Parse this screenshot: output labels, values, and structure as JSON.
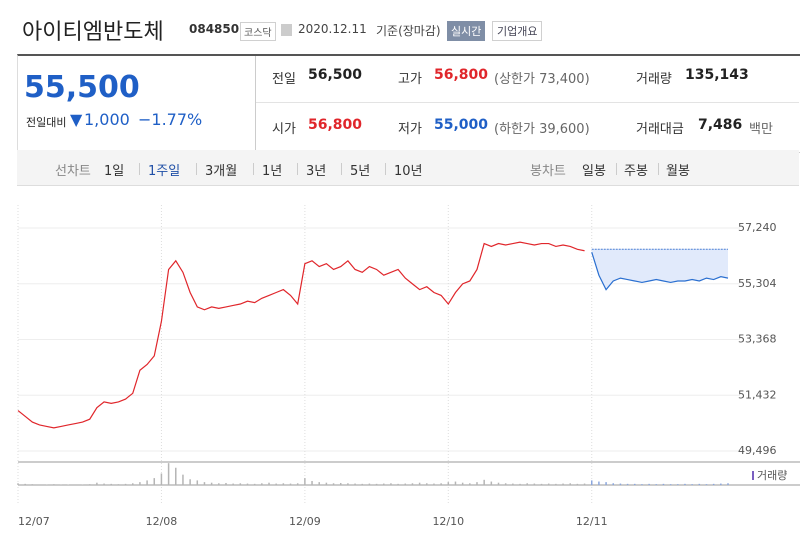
{
  "header": {
    "title": "아이티엠반도체",
    "code": "084850",
    "market": "코스닥",
    "date": "2020.12.11",
    "date_note": "기준(장마감)",
    "realtime_button": "실시간",
    "company_button": "기업개요"
  },
  "summary": {
    "price": "55,500",
    "change_label": "전일대비",
    "change": "1,000",
    "change_pct": "−1.77%"
  },
  "stats": [
    {
      "label": "전일",
      "value": "56,500",
      "note": null
    },
    {
      "label": "고가",
      "value": "56,800",
      "note": "(상한가 73,400)"
    },
    {
      "label": "거래량",
      "value": "135,143",
      "note": null
    },
    {
      "label": "시가",
      "value": "56,800",
      "note": null
    },
    {
      "label": "저가",
      "value": "55,000",
      "note": "(하한가 39,600)"
    },
    {
      "label": "거래대금",
      "value": "7,486",
      "note": "백만"
    }
  ],
  "tabs": {
    "line_label": "선차트",
    "line_tabs": [
      "1일",
      "1주일",
      "3개월",
      "1년",
      "3년",
      "5년",
      "10년"
    ],
    "active": "1주일",
    "candle_label": "봉차트",
    "candle_tabs": [
      "일봉",
      "주봉",
      "월봉"
    ]
  },
  "chart_data": [
    {
      "type": "line",
      "baseline": 56500,
      "categories": [
        "12/07",
        null,
        null,
        null,
        null,
        null,
        null,
        null,
        null,
        null,
        null,
        null,
        null,
        null,
        null,
        null,
        null,
        null,
        null,
        null,
        "12/08",
        null,
        null,
        null,
        null,
        null,
        null,
        null,
        null,
        null,
        null,
        null,
        null,
        null,
        null,
        null,
        null,
        null,
        null,
        null,
        "12/09",
        null,
        null,
        null,
        null,
        null,
        null,
        null,
        null,
        null,
        null,
        null,
        null,
        null,
        null,
        null,
        null,
        null,
        null,
        null,
        "12/10",
        null,
        null,
        null,
        null,
        null,
        null,
        null,
        null,
        null,
        null,
        null,
        null,
        null,
        null,
        null,
        null,
        null,
        null,
        null,
        "12/11",
        null,
        null,
        null,
        null,
        null,
        null,
        null,
        null,
        null,
        null,
        null,
        null,
        null,
        null,
        null,
        null,
        null,
        null,
        null
      ],
      "series": [
        {
          "name": "past",
          "color": "#e0262b",
          "values": [
            50900,
            50700,
            50500,
            50400,
            50350,
            50300,
            50350,
            50400,
            50450,
            50500,
            50600,
            51000,
            51200,
            51150,
            51200,
            51300,
            51500,
            52300,
            52500,
            52800,
            54000,
            55800,
            56100,
            55700,
            55000,
            54500,
            54400,
            54500,
            54450,
            54500,
            54550,
            54600,
            54700,
            54650,
            54800,
            54900,
            55000,
            55100,
            54900,
            54600,
            56000,
            56100,
            55900,
            56000,
            55800,
            55900,
            56100,
            55800,
            55700,
            55900,
            55800,
            55600,
            55700,
            55800,
            55500,
            55300,
            55100,
            55200,
            55000,
            54900,
            54600,
            55000,
            55300,
            55400,
            55800,
            56700,
            56600,
            56700,
            56650,
            56700,
            56750,
            56700,
            56650,
            56700,
            56700,
            56600,
            56650,
            56600,
            56500,
            56450,
            null,
            null,
            null,
            null,
            null,
            null,
            null,
            null,
            null,
            null,
            null,
            null,
            null,
            null,
            null,
            null,
            null,
            null,
            null,
            null
          ]
        },
        {
          "name": "today",
          "color": "#2a6fd0",
          "values": [
            null,
            null,
            null,
            null,
            null,
            null,
            null,
            null,
            null,
            null,
            null,
            null,
            null,
            null,
            null,
            null,
            null,
            null,
            null,
            null,
            null,
            null,
            null,
            null,
            null,
            null,
            null,
            null,
            null,
            null,
            null,
            null,
            null,
            null,
            null,
            null,
            null,
            null,
            null,
            null,
            null,
            null,
            null,
            null,
            null,
            null,
            null,
            null,
            null,
            null,
            null,
            null,
            null,
            null,
            null,
            null,
            null,
            null,
            null,
            null,
            null,
            null,
            null,
            null,
            null,
            null,
            null,
            null,
            null,
            null,
            null,
            null,
            null,
            null,
            null,
            null,
            null,
            null,
            null,
            null,
            56400,
            55600,
            55100,
            55400,
            55500,
            55450,
            55400,
            55350,
            55400,
            55450,
            55400,
            55350,
            55400,
            55400,
            55450,
            55400,
            55500,
            55450,
            55550,
            55500
          ]
        }
      ],
      "ylim": [
        49496,
        57240
      ],
      "yticks": [
        {
          "value": 49496,
          "label": "49,496"
        },
        {
          "value": 51432,
          "label": "51,432"
        },
        {
          "value": 53368,
          "label": "53,368"
        },
        {
          "value": 55304,
          "label": "55,304"
        },
        {
          "value": 57240,
          "label": "57,240"
        }
      ]
    },
    {
      "type": "bar",
      "legend": "거래량",
      "color": "#b5b5b5",
      "ylim": [
        0,
        40000
      ],
      "values": [
        3000,
        2000,
        1500,
        1200,
        1000,
        1500,
        1000,
        800,
        1200,
        1000,
        1500,
        4000,
        2500,
        2000,
        1500,
        2000,
        3000,
        5000,
        8000,
        12000,
        20000,
        38000,
        30000,
        18000,
        10000,
        8000,
        5000,
        4000,
        3000,
        3500,
        2500,
        3000,
        2500,
        2000,
        3000,
        4000,
        2500,
        3000,
        2500,
        3000,
        12000,
        7000,
        5000,
        4000,
        3000,
        3500,
        3000,
        2500,
        2000,
        2500,
        2000,
        2500,
        3000,
        2000,
        2500,
        3000,
        4000,
        3000,
        2500,
        3000,
        5000,
        6000,
        4000,
        3000,
        5000,
        9000,
        6000,
        4000,
        3000,
        2500,
        2000,
        3000,
        2500,
        2000,
        2500,
        2000,
        2500,
        3000,
        2000,
        2500,
        8000,
        6000,
        5000,
        3000,
        2500,
        2000,
        2000,
        1500,
        2000,
        1500,
        2000,
        1500,
        1500,
        2000,
        1500,
        2000,
        1500,
        2000,
        2500,
        3000
      ]
    }
  ]
}
